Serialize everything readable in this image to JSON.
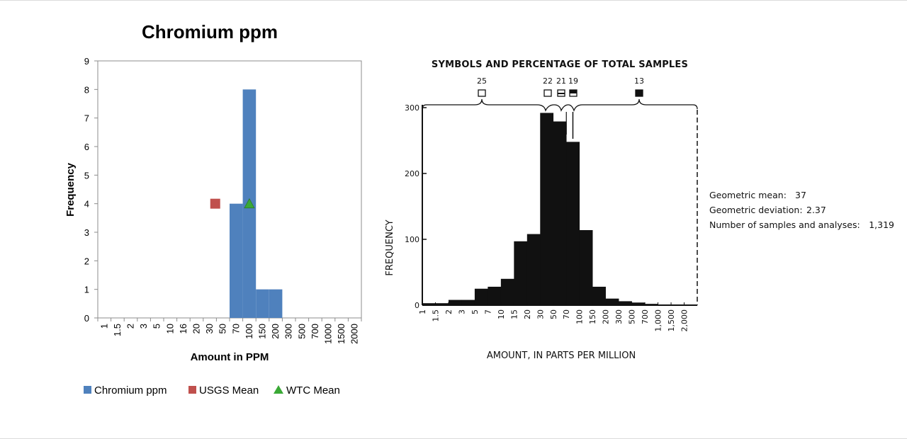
{
  "chart_data": [
    {
      "type": "bar",
      "title": "Chromium ppm",
      "xlabel": "Amount in PPM",
      "ylabel": "Frequency",
      "ylim": [
        0,
        9
      ],
      "yticks": [
        0,
        1,
        2,
        3,
        4,
        5,
        6,
        7,
        8,
        9
      ],
      "categories": [
        "1",
        "1.5",
        "2",
        "3",
        "5",
        "10",
        "16",
        "20",
        "30",
        "50",
        "70",
        "100",
        "150",
        "200",
        "300",
        "500",
        "700",
        "1000",
        "1500",
        "2000"
      ],
      "series": [
        {
          "name": "Chromium ppm",
          "color": "#4f81bd",
          "values": [
            0,
            0,
            0,
            0,
            0,
            0,
            0,
            0,
            0,
            0,
            4,
            8,
            1,
            1,
            0,
            0,
            0,
            0,
            0,
            0
          ]
        }
      ],
      "markers": [
        {
          "name": "USGS Mean",
          "shape": "square",
          "color": "#c0504d",
          "x": 37,
          "y": 4
        },
        {
          "name": "WTC Mean",
          "shape": "triangle",
          "color": "#3aa936",
          "x": 100,
          "y": 4
        }
      ],
      "legend": {
        "placement": "bottom",
        "entries": [
          "Chromium ppm",
          "USGS Mean",
          "WTC Mean"
        ]
      },
      "grid": false
    },
    {
      "type": "bar",
      "title": "SYMBOLS AND PERCENTAGE OF TOTAL SAMPLES",
      "xlabel": "AMOUNT, IN PARTS PER MILLION",
      "ylabel": "FREQUENCY",
      "ylim": [
        0,
        300
      ],
      "yticks": [
        0,
        100,
        200,
        300
      ],
      "categories": [
        "1",
        "1.5",
        "2",
        "3",
        "5",
        "7",
        "10",
        "15",
        "20",
        "30",
        "50",
        "70",
        "100",
        "150",
        "200",
        "300",
        "500",
        "700",
        "1,000",
        "1,500",
        "2,000"
      ],
      "series": [
        {
          "name": "",
          "color": "#111111",
          "values": [
            3,
            3,
            8,
            8,
            25,
            28,
            40,
            97,
            108,
            292,
            279,
            248,
            114,
            28,
            10,
            6,
            4,
            2,
            1,
            1,
            0
          ]
        }
      ],
      "symbols": [
        {
          "label": "25",
          "shape": "open-square"
        },
        {
          "label": "22",
          "shape": "open-square"
        },
        {
          "label": "21",
          "shape": "half-square"
        },
        {
          "label": "19",
          "shape": "mostly-filled-square"
        },
        {
          "label": "13",
          "shape": "filled-square"
        }
      ],
      "stats": [
        {
          "label": "Geometric mean:",
          "value": "37"
        },
        {
          "label": "Geometric deviation:",
          "value": "2.37"
        },
        {
          "label": "Number of samples and analyses:",
          "value": "1,319"
        }
      ],
      "grid": false
    }
  ]
}
